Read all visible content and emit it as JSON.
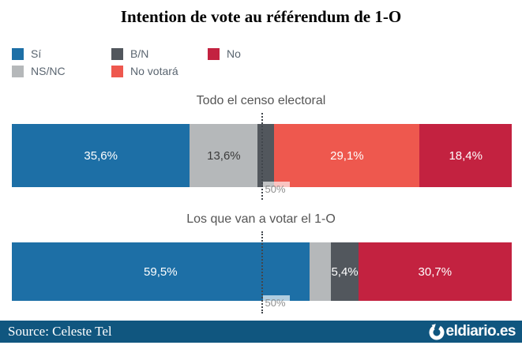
{
  "title": "Intention de vote au référendum de 1-O",
  "legend": {
    "items": [
      {
        "label": "Sí",
        "color": "#1d6fa6",
        "text_on": "#ffffff"
      },
      {
        "label": "B/N",
        "color": "#52575d",
        "text_on": "#ffffff"
      },
      {
        "label": "No",
        "color": "#c32240",
        "text_on": "#ffffff"
      },
      {
        "label": "NS/NC",
        "color": "#b5b8ba",
        "text_on": "#3c3c3c"
      },
      {
        "label": "No votará",
        "color": "#ee584e",
        "text_on": "#ffffff"
      }
    ]
  },
  "chart_data": [
    {
      "type": "bar",
      "orientation": "horizontal-stacked-100",
      "title": "Todo el censo electoral",
      "categories": [
        "Sí",
        "NS/NC",
        "B/N",
        "No votará",
        "No"
      ],
      "values": [
        35.6,
        13.6,
        3.3,
        29.1,
        18.4
      ],
      "data_labels": [
        "35,6%",
        "13,6%",
        "",
        "29,1%",
        "18,4%"
      ],
      "xlim": [
        0,
        100
      ],
      "reference_line": {
        "value": 50,
        "label": "50%"
      }
    },
    {
      "type": "bar",
      "orientation": "horizontal-stacked-100",
      "title": "Los que van a votar el 1-O",
      "categories": [
        "Sí",
        "NS/NC",
        "B/N",
        "No"
      ],
      "values": [
        59.5,
        4.4,
        5.4,
        30.7
      ],
      "data_labels": [
        "59,5%",
        "",
        "5,4%",
        "30,7%"
      ],
      "xlim": [
        0,
        100
      ],
      "reference_line": {
        "value": 50,
        "label": "50%"
      }
    }
  ],
  "footer": {
    "source": "Source: Celeste Tel",
    "brand": "eldiario.es",
    "background": "#10567f"
  },
  "colors": {
    "reference_line": "#41464c",
    "reference_label_text": "#8e8e8e",
    "chart_title_text": "#555555",
    "legend_text": "#5a6570"
  }
}
